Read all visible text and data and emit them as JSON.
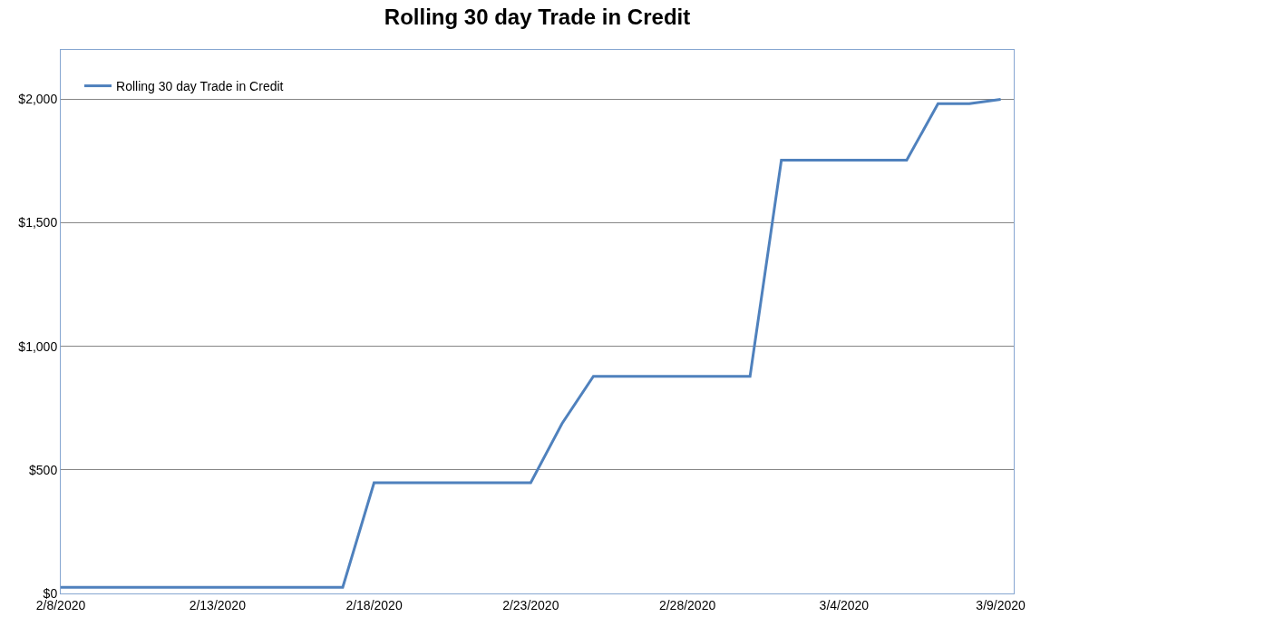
{
  "chart_data": {
    "type": "line",
    "title": "Rolling 30 day Trade in Credit",
    "x": [
      "2020-02-08",
      "2020-02-09",
      "2020-02-10",
      "2020-02-11",
      "2020-02-12",
      "2020-02-13",
      "2020-02-14",
      "2020-02-15",
      "2020-02-16",
      "2020-02-17",
      "2020-02-18",
      "2020-02-19",
      "2020-02-20",
      "2020-02-21",
      "2020-02-22",
      "2020-02-23",
      "2020-02-24",
      "2020-02-25",
      "2020-02-26",
      "2020-02-27",
      "2020-02-28",
      "2020-02-29",
      "2020-03-01",
      "2020-03-02",
      "2020-03-03",
      "2020-03-04",
      "2020-03-05",
      "2020-03-06",
      "2020-03-07",
      "2020-03-08",
      "2020-03-09"
    ],
    "series": [
      {
        "name": "Rolling 30 day Trade in Credit",
        "color": "#4f81bd",
        "values": [
          25,
          25,
          25,
          25,
          25,
          25,
          25,
          25,
          25,
          25,
          448,
          448,
          448,
          448,
          448,
          448,
          688,
          879,
          879,
          879,
          879,
          879,
          879,
          1754,
          1754,
          1754,
          1754,
          1754,
          1982,
          1982,
          2000
        ]
      }
    ],
    "xlim": [
      "2020-02-08",
      "2020-03-09T10:00"
    ],
    "xticks": [
      {
        "value": "2020-02-08",
        "label": "2/8/2020"
      },
      {
        "value": "2020-02-13",
        "label": "2/13/2020"
      },
      {
        "value": "2020-02-18",
        "label": "2/18/2020"
      },
      {
        "value": "2020-02-23",
        "label": "2/23/2020"
      },
      {
        "value": "2020-02-28",
        "label": "2/28/2020"
      },
      {
        "value": "2020-03-04",
        "label": "3/4/2020"
      },
      {
        "value": "2020-03-09",
        "label": "3/9/2020"
      }
    ],
    "ylim": [
      0,
      2200
    ],
    "yticks": [
      {
        "value": 0,
        "label": "$0"
      },
      {
        "value": 500,
        "label": "$500"
      },
      {
        "value": 1000,
        "label": "$1,000"
      },
      {
        "value": 1500,
        "label": "$1,500"
      },
      {
        "value": 2000,
        "label": "$2,000"
      }
    ],
    "grid": "y",
    "legend": "top left",
    "marker": "none",
    "line_style": "solid"
  }
}
